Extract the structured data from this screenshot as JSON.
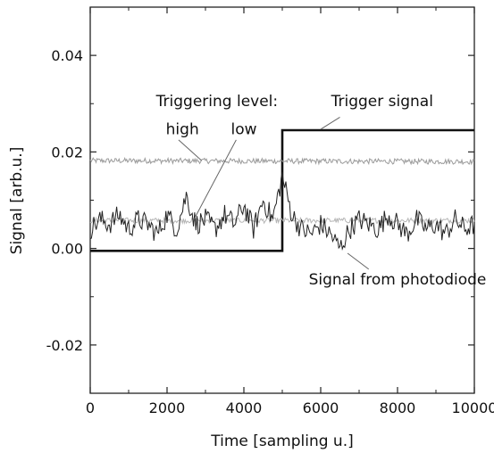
{
  "chart_data": {
    "type": "line",
    "xlabel": "Time [sampling u.]",
    "ylabel": "Signal [arb.u.]",
    "xlim": [
      0,
      10000
    ],
    "ylim": [
      -0.03,
      0.05
    ],
    "xticks": [
      0,
      2000,
      4000,
      6000,
      8000,
      10000
    ],
    "xtick_labels": [
      "0",
      "2000",
      "4000",
      "6000",
      "8000",
      "10000"
    ],
    "yticks": [
      -0.02,
      0.0,
      0.02,
      0.04
    ],
    "ytick_labels": [
      "-0.02",
      "0.00",
      "0.02",
      "0.04"
    ],
    "grid": false,
    "annotations": [
      {
        "text": "Triggering level:",
        "x": 3300,
        "y": 0.0295
      },
      {
        "text": "high",
        "x": 2400,
        "y": 0.0237
      },
      {
        "text": "low",
        "x": 4000,
        "y": 0.0237
      },
      {
        "text": "Trigger signal",
        "x": 7600,
        "y": 0.0295
      },
      {
        "text": "Signal from photodiode",
        "x": 8000,
        "y": -0.0075
      }
    ],
    "series": [
      {
        "color": "#111111",
        "style": "step",
        "x": [
          0,
          5000,
          5000,
          10000
        ],
        "y": [
          -0.0005,
          -0.0005,
          0.0245,
          0.0245
        ]
      },
      {
        "color": "#9a9a9a",
        "style": "noisy-level",
        "x": [
          0,
          10000
        ],
        "y": [
          0.0182,
          0.018
        ]
      },
      {
        "color": "#b5b5b5",
        "style": "noisy-level",
        "x": [
          0,
          10000
        ],
        "y": [
          0.0058,
          0.0058
        ]
      },
      {
        "color": "#222222",
        "style": "noisy-signal",
        "x": [
          0,
          250,
          500,
          750,
          1000,
          1250,
          1500,
          1750,
          2000,
          2250,
          2500,
          2750,
          3000,
          3250,
          3500,
          3750,
          4000,
          4250,
          4500,
          4750,
          5000,
          5250,
          5500,
          5750,
          6000,
          6250,
          6500,
          6750,
          7000,
          7250,
          7500,
          7750,
          8000,
          8250,
          8500,
          8750,
          9000,
          9250,
          9500,
          9750,
          10000
        ],
        "y": [
          0.004,
          0.006,
          0.005,
          0.007,
          0.004,
          0.006,
          0.005,
          0.003,
          0.007,
          0.004,
          0.011,
          0.005,
          0.006,
          0.004,
          0.007,
          0.005,
          0.009,
          0.004,
          0.01,
          0.006,
          0.015,
          0.007,
          0.004,
          0.003,
          0.005,
          0.003,
          0.0,
          0.004,
          0.006,
          0.005,
          0.004,
          0.007,
          0.005,
          0.003,
          0.006,
          0.004,
          0.005,
          0.003,
          0.006,
          0.004,
          0.005
        ]
      }
    ]
  }
}
